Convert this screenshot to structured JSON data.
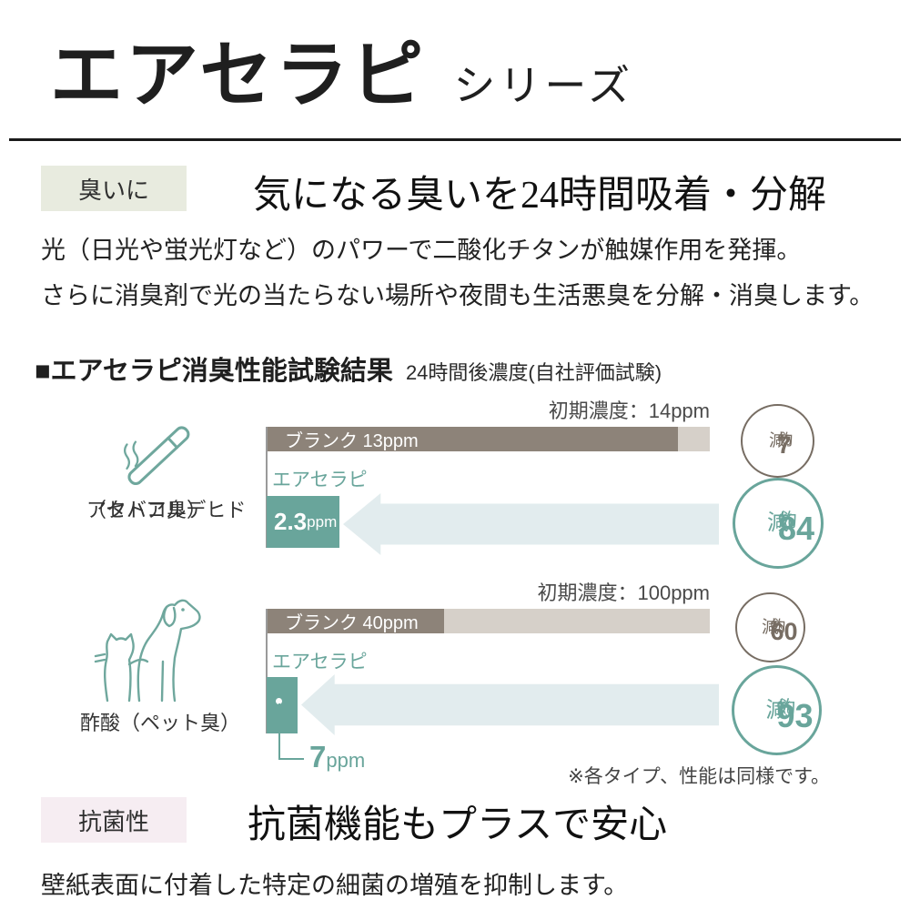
{
  "colors": {
    "teal": "#69a59b",
    "teal-light": "#e2ecee",
    "bar-dark": "#8d8379",
    "bar-light": "#d6d0c9",
    "circle-gray": "#776d63",
    "tag-odor-bg": "#e8ebdf",
    "tag-anti-bg": "#f6edf2",
    "ink": "#1f1f1f",
    "text-gray": "#4a4a4a",
    "axis-gray": "#9a9a9a"
  },
  "header": {
    "title": "エアセラピ",
    "series": "シリーズ"
  },
  "odor_section": {
    "tag": "臭いに",
    "heading": "気になる臭いを24時間吸着・分解",
    "body1": "光（日光や蛍光灯など）のパワーで二酸化チタンが触媒作用を発揮。",
    "body2": "さらに消臭剤で光の当たらない場所や夜間も生活悪臭を分解・消臭します。"
  },
  "test_section": {
    "title": "■エアセラピ消臭性能試験結果",
    "subtitle": "24時間後濃度(自社評価試験)",
    "note": "※各タイプ、性能は同様です。"
  },
  "charts": [
    {
      "initial": "初期濃度：14ppm",
      "blank_label": "ブランク 13ppm",
      "product_label": "エアセラピ",
      "value": "2.3",
      "unit": "ppm",
      "item": "アセトアルデヒド",
      "item2": "（タバコ臭）",
      "blank_circle": {
        "about": "約",
        "num": "7",
        "pct": "%",
        "down": "減"
      },
      "product_circle": {
        "about": "約",
        "num": "84",
        "pct": "%",
        "down": "減"
      }
    },
    {
      "initial": "初期濃度：100ppm",
      "blank_label": "ブランク 40ppm",
      "product_label": "エアセラピ",
      "value": "7",
      "unit": "ppm",
      "item": "酢酸（ペット臭）",
      "item2": "",
      "blank_circle": {
        "about": "約",
        "num": "60",
        "pct": "%",
        "down": "減"
      },
      "product_circle": {
        "about": "約",
        "num": "93",
        "pct": "%",
        "down": "減"
      }
    }
  ],
  "chart_data": {
    "type": "bar",
    "orientation": "horizontal",
    "title": "エアセラピ消臭性能試験結果",
    "subtitle": "24時間後濃度(自社評価試験)",
    "unit": "ppm",
    "groups": [
      {
        "substance": "アセトアルデヒド（タバコ臭）",
        "initial_ppm": 14,
        "series": [
          {
            "name": "ブランク",
            "value_ppm": 13,
            "reduction_label": "約7%減"
          },
          {
            "name": "エアセラピ",
            "value_ppm": 2.3,
            "reduction_label": "約84%減"
          }
        ]
      },
      {
        "substance": "酢酸（ペット臭）",
        "initial_ppm": 100,
        "series": [
          {
            "name": "ブランク",
            "value_ppm": 40,
            "reduction_label": "約60%減"
          },
          {
            "name": "エアセラピ",
            "value_ppm": 7,
            "reduction_label": "約93%減"
          }
        ]
      }
    ],
    "note": "※各タイプ、性能は同様です。"
  },
  "anti_section": {
    "tag": "抗菌性",
    "heading": "抗菌機能もプラスで安心",
    "body": "壁紙表面に付着した特定の細菌の増殖を抑制します。"
  }
}
